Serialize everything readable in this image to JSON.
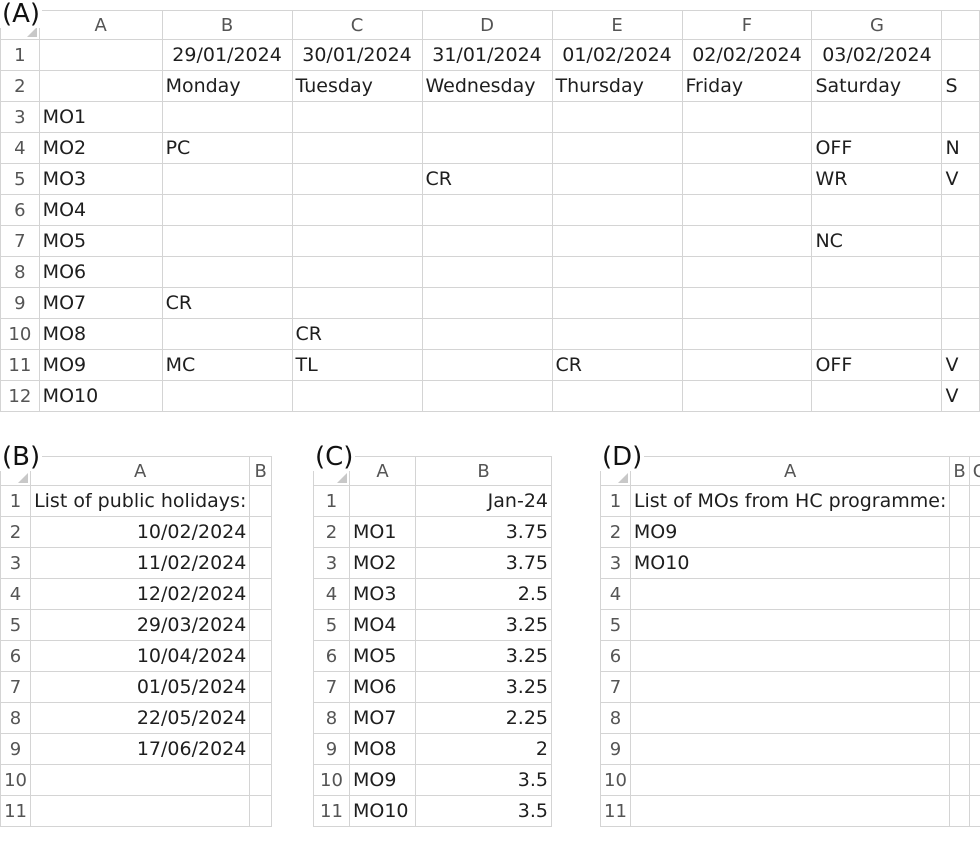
{
  "panel_a": {
    "label": "(A)",
    "col_headers": [
      "A",
      "B",
      "C",
      "D",
      "E",
      "F",
      "G",
      ""
    ],
    "rows": [
      {
        "n": "1",
        "cells": [
          "",
          "29/01/2024",
          "30/01/2024",
          "31/01/2024",
          "01/02/2024",
          "02/02/2024",
          "03/02/2024",
          ""
        ]
      },
      {
        "n": "2",
        "cells": [
          "",
          "Monday",
          "Tuesday",
          "Wednesday",
          "Thursday",
          "Friday",
          "Saturday",
          "S"
        ]
      },
      {
        "n": "3",
        "cells": [
          "MO1",
          "",
          "",
          "",
          "",
          "",
          "",
          ""
        ]
      },
      {
        "n": "4",
        "cells": [
          "MO2",
          "PC",
          "",
          "",
          "",
          "",
          "OFF",
          "N"
        ]
      },
      {
        "n": "5",
        "cells": [
          "MO3",
          "",
          "",
          "CR",
          "",
          "",
          "WR",
          "V"
        ]
      },
      {
        "n": "6",
        "cells": [
          "MO4",
          "",
          "",
          "",
          "",
          "",
          "",
          ""
        ]
      },
      {
        "n": "7",
        "cells": [
          "MO5",
          "",
          "",
          "",
          "",
          "",
          "NC",
          ""
        ]
      },
      {
        "n": "8",
        "cells": [
          "MO6",
          "",
          "",
          "",
          "",
          "",
          "",
          ""
        ]
      },
      {
        "n": "9",
        "cells": [
          "MO7",
          "CR",
          "",
          "",
          "",
          "",
          "",
          ""
        ]
      },
      {
        "n": "10",
        "cells": [
          "MO8",
          "",
          "CR",
          "",
          "",
          "",
          "",
          ""
        ]
      },
      {
        "n": "11",
        "cells": [
          "MO9",
          "MC",
          "TL",
          "",
          "CR",
          "",
          "OFF",
          "V"
        ]
      },
      {
        "n": "12",
        "cells": [
          "MO10",
          "",
          "",
          "",
          "",
          "",
          "",
          "V"
        ]
      }
    ]
  },
  "panel_b": {
    "label": "(B)",
    "col_headers": [
      "A",
      "B"
    ],
    "rows": [
      {
        "n": "1",
        "cells": [
          "List of public holidays:",
          ""
        ]
      },
      {
        "n": "2",
        "cells": [
          "10/02/2024",
          ""
        ]
      },
      {
        "n": "3",
        "cells": [
          "11/02/2024",
          ""
        ]
      },
      {
        "n": "4",
        "cells": [
          "12/02/2024",
          ""
        ]
      },
      {
        "n": "5",
        "cells": [
          "29/03/2024",
          ""
        ]
      },
      {
        "n": "6",
        "cells": [
          "10/04/2024",
          ""
        ]
      },
      {
        "n": "7",
        "cells": [
          "01/05/2024",
          ""
        ]
      },
      {
        "n": "8",
        "cells": [
          "22/05/2024",
          ""
        ]
      },
      {
        "n": "9",
        "cells": [
          "17/06/2024",
          ""
        ]
      },
      {
        "n": "10",
        "cells": [
          "",
          ""
        ]
      },
      {
        "n": "11",
        "cells": [
          "",
          ""
        ]
      }
    ]
  },
  "panel_c": {
    "label": "(C)",
    "col_headers": [
      "A",
      "B"
    ],
    "rows": [
      {
        "n": "1",
        "cells": [
          "",
          "Jan-24"
        ]
      },
      {
        "n": "2",
        "cells": [
          "MO1",
          "3.75"
        ]
      },
      {
        "n": "3",
        "cells": [
          "MO2",
          "3.75"
        ]
      },
      {
        "n": "4",
        "cells": [
          "MO3",
          "2.5"
        ]
      },
      {
        "n": "5",
        "cells": [
          "MO4",
          "3.25"
        ]
      },
      {
        "n": "6",
        "cells": [
          "MO5",
          "3.25"
        ]
      },
      {
        "n": "7",
        "cells": [
          "MO6",
          "3.25"
        ]
      },
      {
        "n": "8",
        "cells": [
          "MO7",
          "2.25"
        ]
      },
      {
        "n": "9",
        "cells": [
          "MO8",
          "2"
        ]
      },
      {
        "n": "10",
        "cells": [
          "MO9",
          "3.5"
        ]
      },
      {
        "n": "11",
        "cells": [
          "MO10",
          "3.5"
        ]
      }
    ]
  },
  "panel_d": {
    "label": "(D)",
    "col_headers": [
      "A",
      "B",
      "C"
    ],
    "rows": [
      {
        "n": "1",
        "cells": [
          "List of MOs from HC programme:",
          "",
          ""
        ]
      },
      {
        "n": "2",
        "cells": [
          "MO9",
          "",
          ""
        ]
      },
      {
        "n": "3",
        "cells": [
          "MO10",
          "",
          ""
        ]
      },
      {
        "n": "4",
        "cells": [
          "",
          "",
          ""
        ]
      },
      {
        "n": "5",
        "cells": [
          "",
          "",
          ""
        ]
      },
      {
        "n": "6",
        "cells": [
          "",
          "",
          ""
        ]
      },
      {
        "n": "7",
        "cells": [
          "",
          "",
          ""
        ]
      },
      {
        "n": "8",
        "cells": [
          "",
          "",
          ""
        ]
      },
      {
        "n": "9",
        "cells": [
          "",
          "",
          ""
        ]
      },
      {
        "n": "10",
        "cells": [
          "",
          "",
          ""
        ]
      },
      {
        "n": "11",
        "cells": [
          "",
          "",
          ""
        ]
      }
    ]
  }
}
